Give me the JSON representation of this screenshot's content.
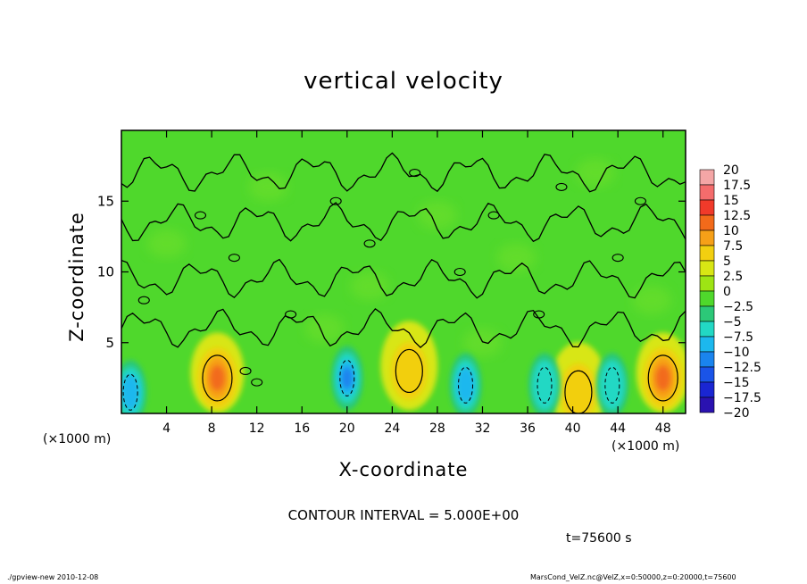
{
  "chart_data": {
    "type": "heatmap",
    "title": "vertical velocity",
    "xlabel": "X-coordinate",
    "ylabel": "Z-coordinate",
    "x_unit_left": "(×1000 m)",
    "x_unit_right": "(×1000 m)",
    "xlim": [
      0,
      50
    ],
    "ylim": [
      0,
      20
    ],
    "x_ticks": [
      4,
      8,
      12,
      16,
      20,
      24,
      28,
      32,
      36,
      40,
      44,
      48
    ],
    "y_ticks": [
      5,
      10,
      15
    ],
    "colorbar_levels": [
      20,
      17.5,
      15,
      12.5,
      10,
      7.5,
      5,
      2.5,
      0,
      -2.5,
      -5,
      -7.5,
      -10,
      -12.5,
      -15,
      -17.5,
      -20
    ],
    "colorbar_colors": [
      "#f4a6a6",
      "#f46c6c",
      "#f03a2a",
      "#f26a1a",
      "#f6a018",
      "#f2cf10",
      "#d8e614",
      "#9ee414",
      "#4fd82c",
      "#2cc878",
      "#22d8c4",
      "#1cb8ee",
      "#1a84ee",
      "#1a54e8",
      "#1a26d2",
      "#2a12b0",
      "#5a0aa0"
    ],
    "field_background_color": "#4fd82c",
    "updraft_cores": [
      {
        "x": 8.5,
        "z": 2.5,
        "peak": 10
      },
      {
        "x": 25.5,
        "z": 3.0,
        "peak": 5
      },
      {
        "x": 40.5,
        "z": 1.5,
        "peak": 5
      },
      {
        "x": 48.0,
        "z": 2.5,
        "peak": 10
      }
    ],
    "downdraft_cores": [
      {
        "x": 0.8,
        "z": 1.5,
        "peak": -7.5
      },
      {
        "x": 20.0,
        "z": 2.5,
        "peak": -10
      },
      {
        "x": 30.5,
        "z": 2.0,
        "peak": -7.5
      },
      {
        "x": 37.5,
        "z": 2.0,
        "peak": -5
      },
      {
        "x": 43.5,
        "z": 2.0,
        "peak": -5
      }
    ],
    "contour_interval_text": "CONTOUR INTERVAL = 5.000E+00",
    "time_text": "t=75600 s"
  },
  "footer": {
    "left": "./gpview-new  2010-12-08",
    "right": "MarsCond_VelZ.nc@VelZ,x=0:50000,z=0:20000,t=75600"
  }
}
